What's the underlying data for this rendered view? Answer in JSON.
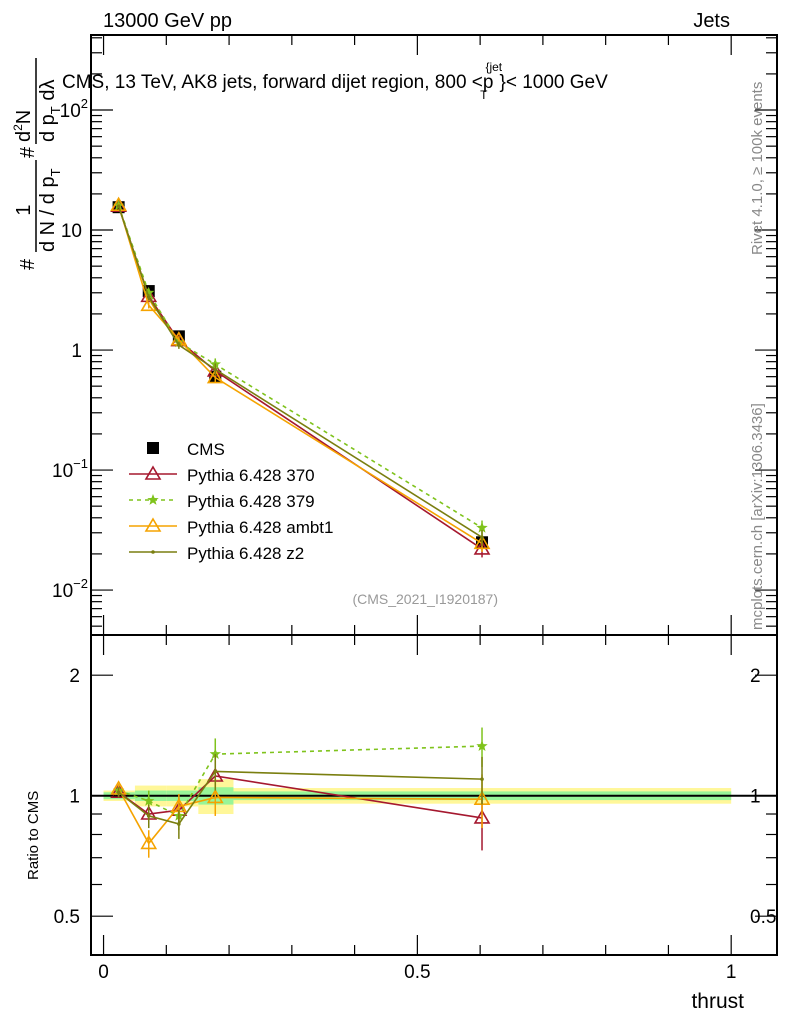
{
  "header": {
    "left": "13000 GeV pp",
    "right": "Jets"
  },
  "side_labels": {
    "rivet": "Rivet 4.1.0, ≥ 100k events",
    "mcplots": "mcplots.cern.ch [arXiv:1306.3436]"
  },
  "ylabel_parts": {
    "hash1": "#",
    "num1": "1",
    "den1": "d N / d p",
    "den1_sub": "T",
    "hash2": "#",
    "num2": "d",
    "num2_sup": "2",
    "num2_rest": "N",
    "den2": "d p",
    "den2_sub": "T",
    "den2_rest": " dλ"
  },
  "title_parts": {
    "main": "CMS, 13 TeV, AK8 jets, forward dijet region, 800 <p",
    "sup": "{jet",
    "sub": "T",
    "end": "}< 1000 GeV"
  },
  "watermark": "(CMS_2021_I1920187)",
  "chart_data": [
    {
      "type": "line",
      "title": "CMS, 13 TeV, AK8 jets, forward dijet region, 800 < p_T^{jet} < 1000 GeV",
      "xlabel": "thrust",
      "ylabel": "1/(dN/dp_T) d^2N/(dp_T dλ)",
      "yscale": "log",
      "xlim": [
        -0.02,
        1.073
      ],
      "ylim": [
        0.00422,
        422
      ],
      "yticks": [
        {
          "v": 0.01,
          "base": "10",
          "exp": "−2"
        },
        {
          "v": 0.1,
          "base": "10",
          "exp": "−1"
        },
        {
          "v": 1,
          "base": "1",
          "exp": ""
        },
        {
          "v": 10,
          "base": "10",
          "exp": ""
        },
        {
          "v": 100,
          "base": "10",
          "exp": "2"
        }
      ],
      "legend_position": "bottom-left",
      "x": [
        0.024,
        0.072,
        0.12,
        0.178,
        0.603
      ],
      "series": [
        {
          "name": "CMS",
          "color": "#000000",
          "marker": "square",
          "dash": "",
          "values": [
            15.5,
            3.1,
            1.3,
            0.6,
            0.025
          ]
        },
        {
          "name": "Pythia 6.428 370",
          "color": "#a5182f",
          "marker": "triangle",
          "dash": "",
          "values": [
            15.8,
            2.8,
            1.2,
            0.67,
            0.022
          ],
          "rel_err": [
            0.03,
            0.06,
            0.07,
            0.1,
            0.15
          ]
        },
        {
          "name": "Pythia 6.428 379",
          "color": "#7fc31c",
          "marker": "star",
          "dash": "4,4",
          "values": [
            16.0,
            3.0,
            1.16,
            0.76,
            0.033
          ],
          "rel_err": [
            0.03,
            0.06,
            0.07,
            0.12,
            0.15
          ]
        },
        {
          "name": "Pythia 6.428 ambt1",
          "color": "#f5a300",
          "marker": "triangle",
          "dash": "",
          "values": [
            16.1,
            2.36,
            1.22,
            0.59,
            0.0245
          ],
          "rel_err": [
            0.03,
            0.06,
            0.07,
            0.1,
            0.15
          ]
        },
        {
          "name": "Pythia 6.428 z2",
          "color": "#7a7f10",
          "marker": "dot",
          "dash": "",
          "values": [
            15.8,
            2.76,
            1.1,
            0.69,
            0.0275
          ],
          "rel_err": [
            0.03,
            0.06,
            0.07,
            0.12,
            0.15
          ]
        }
      ]
    },
    {
      "type": "line",
      "xlabel": "thrust",
      "ylabel": "Ratio to CMS",
      "yscale": "log",
      "ylim": [
        0.4,
        2.52
      ],
      "yticks": [
        0.5,
        1,
        2
      ],
      "xticks": [
        0,
        0.5,
        1
      ],
      "bands": {
        "edges": [
          0,
          0.05,
          0.151,
          0.207,
          1.0
        ],
        "stat": [
          0.02,
          0.03,
          0.05,
          0.025
        ],
        "total": [
          0.03,
          0.06,
          0.1,
          0.045
        ]
      },
      "bands_pts": {
        "x_edges": [
          [
            0.0,
            0.05
          ],
          [
            0.05,
            0.1
          ],
          [
            0.1,
            0.151
          ],
          [
            0.151,
            0.207
          ],
          [
            0.207,
            1.0
          ]
        ],
        "stat": [
          0.02,
          0.03,
          0.03,
          0.05,
          0.025
        ],
        "total": [
          0.03,
          0.06,
          0.06,
          0.1,
          0.045
        ]
      },
      "series": [
        {
          "name": "Pythia 6.428 370",
          "values": [
            1.02,
            0.9,
            0.92,
            1.12,
            0.88
          ],
          "rel_err": [
            0.03,
            0.06,
            0.07,
            0.1,
            0.15
          ]
        },
        {
          "name": "Pythia 6.428 379",
          "values": [
            1.03,
            0.97,
            0.89,
            1.27,
            1.33
          ],
          "rel_err": [
            0.03,
            0.06,
            0.07,
            0.12,
            0.15
          ]
        },
        {
          "name": "Pythia 6.428 ambt1",
          "values": [
            1.04,
            0.76,
            0.94,
            0.99,
            0.98
          ],
          "rel_err": [
            0.03,
            0.06,
            0.07,
            0.1,
            0.15
          ]
        },
        {
          "name": "Pythia 6.428 z2",
          "values": [
            1.02,
            0.89,
            0.85,
            1.15,
            1.1
          ],
          "rel_err": [
            0.03,
            0.06,
            0.07,
            0.12,
            0.15
          ]
        }
      ]
    }
  ]
}
